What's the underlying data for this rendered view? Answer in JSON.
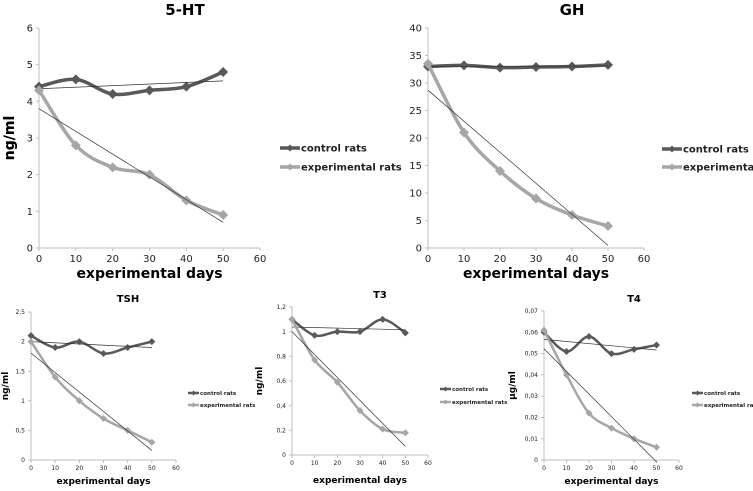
{
  "colors": {
    "control": "#595959",
    "experimental": "#a6a6a6",
    "trendline": "#333333",
    "axis": "#bfbfbf"
  },
  "chart_data": [
    {
      "type": "line",
      "title": "5-HT",
      "xlabel": "experimental days",
      "ylabel": "ng/ml",
      "x": [
        0,
        10,
        20,
        30,
        40,
        50
      ],
      "xlim": [
        0,
        60
      ],
      "xticks": [
        "0",
        "10",
        "20",
        "30",
        "40",
        "50",
        "60"
      ],
      "ylim": [
        0,
        6
      ],
      "yticks": [
        "0",
        "1",
        "2",
        "3",
        "4",
        "5",
        "6"
      ],
      "grid": false,
      "legend": "right",
      "trendline": "linear",
      "marker": "diamond",
      "smooth": true,
      "series": [
        {
          "name": "control rats",
          "values": [
            4.4,
            4.6,
            4.2,
            4.3,
            4.4,
            4.8
          ]
        },
        {
          "name": "experimental rats",
          "values": [
            4.3,
            2.8,
            2.2,
            2.0,
            1.3,
            0.9
          ]
        }
      ]
    },
    {
      "type": "line",
      "title": "GH",
      "xlabel": "experimental days",
      "ylabel": "ng/ml",
      "x": [
        0,
        10,
        20,
        30,
        40,
        50
      ],
      "xlim": [
        0,
        60
      ],
      "xticks": [
        "0",
        "10",
        "20",
        "30",
        "40",
        "50",
        "60"
      ],
      "ylim": [
        0,
        40
      ],
      "yticks": [
        "0",
        "5",
        "10",
        "15",
        "20",
        "25",
        "30",
        "35",
        "40"
      ],
      "grid": false,
      "legend": "right",
      "trendline": "linear",
      "marker": "diamond",
      "smooth": true,
      "series": [
        {
          "name": "control rats",
          "values": [
            33,
            33.2,
            32.8,
            32.9,
            33,
            33.3
          ]
        },
        {
          "name": "experimental rats",
          "values": [
            33.5,
            21,
            14,
            9,
            6,
            4
          ]
        }
      ]
    },
    {
      "type": "line",
      "title": "TSH",
      "xlabel": "experimental days",
      "ylabel": "ng/ml",
      "x": [
        0,
        10,
        20,
        30,
        40,
        50
      ],
      "xlim": [
        0,
        60
      ],
      "xticks": [
        "0",
        "10",
        "20",
        "30",
        "40",
        "50",
        "60"
      ],
      "ylim": [
        0,
        2.5
      ],
      "yticks": [
        "0",
        "0,5",
        "1",
        "1,5",
        "2",
        "2,5"
      ],
      "grid": false,
      "legend": "right",
      "trendline": "linear",
      "marker": "diamond",
      "smooth": true,
      "series": [
        {
          "name": "control rats",
          "values": [
            2.1,
            1.9,
            2.0,
            1.8,
            1.9,
            2.0
          ]
        },
        {
          "name": "experimental rats",
          "values": [
            2.0,
            1.4,
            1.0,
            0.7,
            0.5,
            0.3
          ]
        }
      ]
    },
    {
      "type": "line",
      "title": "T3",
      "xlabel": "experimental days",
      "ylabel": "ng/ml",
      "x": [
        0,
        10,
        20,
        30,
        40,
        50
      ],
      "xlim": [
        0,
        60
      ],
      "xticks": [
        "0",
        "10",
        "20",
        "30",
        "40",
        "50",
        "60"
      ],
      "ylim": [
        0,
        1.2
      ],
      "yticks": [
        "0",
        "0,2",
        "0,4",
        "0,6",
        "0,8",
        "1",
        "1,2"
      ],
      "grid": false,
      "legend": "right",
      "trendline": "linear",
      "marker": "diamond",
      "smooth": true,
      "series": [
        {
          "name": "control rats",
          "values": [
            1.1,
            0.97,
            1.0,
            1.0,
            1.1,
            0.99
          ]
        },
        {
          "name": "experimental rats",
          "values": [
            1.1,
            0.77,
            0.59,
            0.36,
            0.21,
            0.18
          ]
        }
      ]
    },
    {
      "type": "line",
      "title": "T4",
      "xlabel": "experimental days",
      "ylabel": "µg/ml",
      "x": [
        0,
        10,
        20,
        30,
        40,
        50
      ],
      "xlim": [
        0,
        60
      ],
      "xticks": [
        "0",
        "10",
        "20",
        "30",
        "40",
        "50",
        "60"
      ],
      "ylim": [
        0,
        0.07
      ],
      "yticks": [
        "0",
        "0,01",
        "0,02",
        "0,03",
        "0,04",
        "0,05",
        "0,06",
        "0,07"
      ],
      "grid": false,
      "legend": "right",
      "trendline": "linear",
      "marker": "diamond",
      "smooth": true,
      "series": [
        {
          "name": "control rats",
          "values": [
            0.06,
            0.051,
            0.058,
            0.05,
            0.052,
            0.054
          ]
        },
        {
          "name": "experimental rats",
          "values": [
            0.061,
            0.04,
            0.022,
            0.015,
            0.01,
            0.006
          ]
        }
      ]
    }
  ]
}
